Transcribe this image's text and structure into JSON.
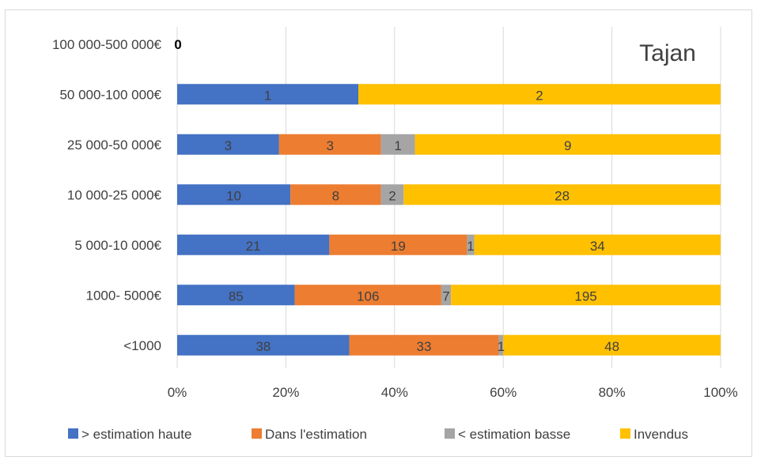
{
  "chart_data": {
    "type": "bar",
    "orientation": "horizontal",
    "stacking": "percent",
    "title": "Tajan",
    "legend_position": "bottom",
    "grid": true,
    "xlim": [
      0,
      100
    ],
    "x_ticks": [
      "0%",
      "20%",
      "40%",
      "60%",
      "80%",
      "100%"
    ],
    "categories": [
      "100 000-500 000€",
      "50 000-100 000€",
      "25 000-50 000€",
      "10 000-25 000€",
      "5 000-10 000€",
      "1000- 5000€",
      "<1000"
    ],
    "empty_category_label": "0",
    "series": [
      {
        "name": "> estimation haute",
        "color": "#4472c4",
        "values": [
          0,
          1,
          3,
          10,
          21,
          85,
          38
        ]
      },
      {
        "name": "Dans l'estimation",
        "color": "#ed7d31",
        "values": [
          0,
          0,
          3,
          8,
          19,
          106,
          33
        ]
      },
      {
        "name": "< estimation  basse",
        "color": "#a5a5a5",
        "values": [
          0,
          0,
          1,
          2,
          1,
          7,
          1
        ]
      },
      {
        "name": "Invendus",
        "color": "#ffc000",
        "values": [
          0,
          2,
          9,
          28,
          34,
          195,
          48
        ]
      }
    ]
  }
}
